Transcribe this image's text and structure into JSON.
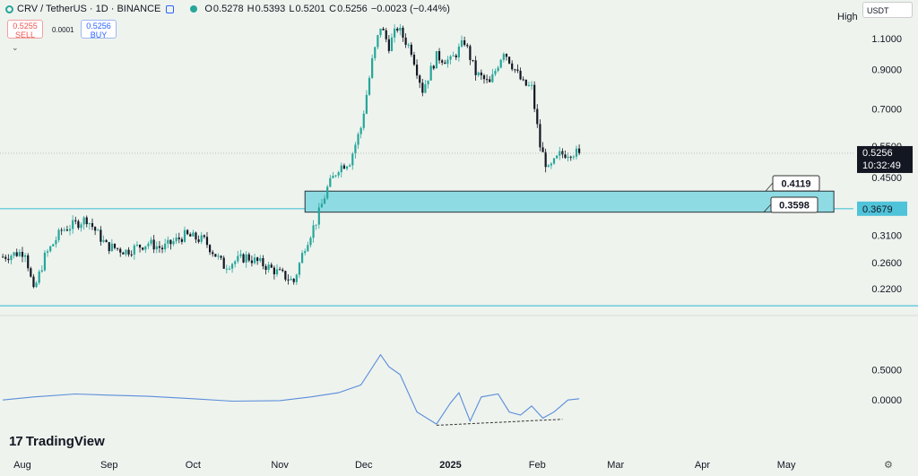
{
  "header": {
    "symbol": "CRV / TetherUS · 1D · BINANCE",
    "open_label": "O",
    "open": "0.5278",
    "high_label": "H",
    "high": "0.5393",
    "low_label": "L",
    "low": "0.5201",
    "close_label": "C",
    "close": "0.5256",
    "change": "−0.0023 (−0.44%)"
  },
  "order_buttons": {
    "sell_price": "0.5255",
    "sell_label": "SELL",
    "spread": "0.0001",
    "buy_price": "0.5256",
    "buy_label": "BUY"
  },
  "currency_select": "USDT",
  "high_label": "High",
  "brand": "TradingView",
  "colors": {
    "up": "#26a69a",
    "down": "#131722",
    "zone_fill": "#8fdbe3",
    "zone_border": "#26323a",
    "support_line": "#4fc3d9",
    "oscillator": "#5b8dd9",
    "background": "#eef3ee"
  },
  "chart_data": {
    "type": "candlestick",
    "price_axis": {
      "ylim": [
        0.185,
        1.27
      ],
      "scale": "log",
      "ticks": [
        "1.1000",
        "0.9000",
        "0.7000",
        "0.5500",
        "0.4500",
        "0.3100",
        "0.2600",
        "0.2200"
      ]
    },
    "time_axis": {
      "labels": [
        "Aug",
        "Sep",
        "Oct",
        "Nov",
        "Dec",
        "2025",
        "Feb",
        "Mar",
        "Apr",
        "May"
      ],
      "bold_label": "2025"
    },
    "current_price": {
      "value": "0.5256",
      "countdown": "10:32:49"
    },
    "support_line": {
      "value": 0.3679,
      "label": "0.3679"
    },
    "bottom_line": {
      "value": 0.197
    },
    "zone": {
      "low": 0.3598,
      "high": 0.4119,
      "labels": [
        "0.4119",
        "0.3598"
      ],
      "start": "2024-11-10",
      "end": "2025-05-18"
    },
    "price_path": [
      [
        "2024-07-25",
        0.27
      ],
      [
        "2024-08-02",
        0.28
      ],
      [
        "2024-08-05",
        0.215
      ],
      [
        "2024-08-09",
        0.27
      ],
      [
        "2024-08-15",
        0.32
      ],
      [
        "2024-08-24",
        0.345
      ],
      [
        "2024-08-31",
        0.29
      ],
      [
        "2024-09-07",
        0.28
      ],
      [
        "2024-09-15",
        0.295
      ],
      [
        "2024-09-20",
        0.285
      ],
      [
        "2024-09-28",
        0.31
      ],
      [
        "2024-10-05",
        0.3
      ],
      [
        "2024-10-12",
        0.255
      ],
      [
        "2024-10-20",
        0.27
      ],
      [
        "2024-10-27",
        0.255
      ],
      [
        "2024-11-02",
        0.24
      ],
      [
        "2024-11-06",
        0.23
      ],
      [
        "2024-11-10",
        0.29
      ],
      [
        "2024-11-14",
        0.34
      ],
      [
        "2024-11-18",
        0.42
      ],
      [
        "2024-11-22",
        0.48
      ],
      [
        "2024-11-26",
        0.5
      ],
      [
        "2024-11-30",
        0.62
      ],
      [
        "2024-12-04",
        0.95
      ],
      [
        "2024-12-07",
        1.19
      ],
      [
        "2024-12-10",
        1.05
      ],
      [
        "2024-12-13",
        1.18
      ],
      [
        "2024-12-18",
        1.02
      ],
      [
        "2024-12-22",
        0.79
      ],
      [
        "2024-12-27",
        0.98
      ],
      [
        "2025-01-01",
        0.95
      ],
      [
        "2025-01-06",
        1.08
      ],
      [
        "2025-01-10",
        0.88
      ],
      [
        "2025-01-15",
        0.82
      ],
      [
        "2025-01-20",
        1.02
      ],
      [
        "2025-01-24",
        0.9
      ],
      [
        "2025-01-27",
        0.82
      ],
      [
        "2025-01-30",
        0.8
      ],
      [
        "2025-02-02",
        0.55
      ],
      [
        "2025-02-05",
        0.47
      ],
      [
        "2025-02-09",
        0.52
      ],
      [
        "2025-02-13",
        0.53
      ],
      [
        "2025-02-16",
        0.5256
      ]
    ],
    "oscillator": {
      "ticks": [
        "0.5000",
        "0.0000"
      ],
      "ylim": [
        -0.8,
        1.4
      ],
      "values": [
        [
          "2024-07-25",
          0.0
        ],
        [
          "2024-08-05",
          0.05
        ],
        [
          "2024-08-20",
          0.1
        ],
        [
          "2024-09-01",
          0.08
        ],
        [
          "2024-09-15",
          0.06
        ],
        [
          "2024-10-01",
          0.02
        ],
        [
          "2024-10-15",
          -0.02
        ],
        [
          "2024-11-01",
          -0.01
        ],
        [
          "2024-11-12",
          0.05
        ],
        [
          "2024-11-22",
          0.12
        ],
        [
          "2024-11-30",
          0.25
        ],
        [
          "2024-12-07",
          0.75
        ],
        [
          "2024-12-10",
          0.55
        ],
        [
          "2024-12-14",
          0.42
        ],
        [
          "2024-12-20",
          -0.2
        ],
        [
          "2024-12-27",
          -0.4
        ],
        [
          "2025-01-01",
          -0.05
        ],
        [
          "2025-01-04",
          0.12
        ],
        [
          "2025-01-08",
          -0.35
        ],
        [
          "2025-01-12",
          0.05
        ],
        [
          "2025-01-18",
          0.1
        ],
        [
          "2025-01-22",
          -0.2
        ],
        [
          "2025-01-26",
          -0.25
        ],
        [
          "2025-01-30",
          -0.1
        ],
        [
          "2025-02-03",
          -0.3
        ],
        [
          "2025-02-07",
          -0.2
        ],
        [
          "2025-02-12",
          0.0
        ],
        [
          "2025-02-16",
          0.02
        ]
      ],
      "divergence_line": [
        [
          "2024-12-27",
          -0.42
        ],
        [
          "2025-02-10",
          -0.32
        ]
      ]
    }
  }
}
